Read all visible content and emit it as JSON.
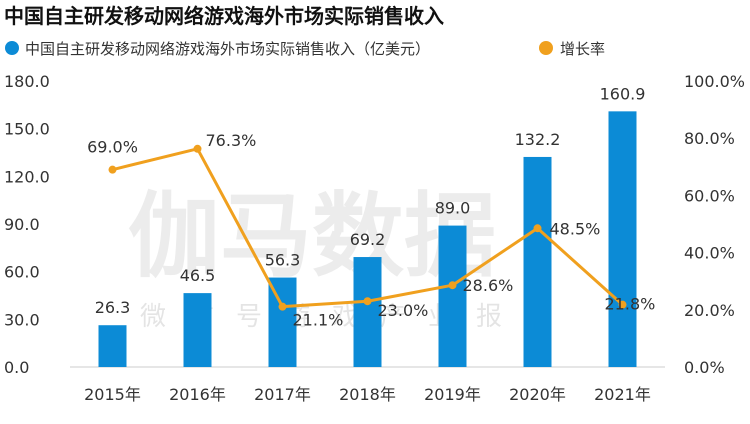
{
  "chart_data": {
    "type": "bar",
    "title": "中国自主研发移动网络游戏海外市场实际销售收入",
    "categories": [
      "2015年",
      "2016年",
      "2017年",
      "2018年",
      "2019年",
      "2020年",
      "2021年"
    ],
    "series": [
      {
        "name": "中国自主研发移动网络游戏海外市场实际销售收入（亿美元）",
        "type": "bar",
        "axis": "left",
        "values": [
          26.3,
          46.5,
          56.3,
          69.2,
          89.0,
          132.2,
          160.9
        ],
        "labels": [
          "26.3",
          "46.5",
          "56.3",
          "69.2",
          "89.0",
          "132.2",
          "160.9"
        ]
      },
      {
        "name": "增长率",
        "type": "line",
        "axis": "right",
        "values": [
          69.0,
          76.3,
          21.1,
          23.0,
          28.6,
          48.5,
          21.8
        ],
        "labels": [
          "69.0%",
          "76.3%",
          "21.1%",
          "23.0%",
          "28.6%",
          "48.5%",
          "21.8%"
        ]
      }
    ],
    "y_left": {
      "range": [
        0,
        180
      ],
      "ticks": [
        "0.0",
        "30.0",
        "60.0",
        "90.0",
        "120.0",
        "150.0",
        "180.0"
      ]
    },
    "y_right": {
      "range": [
        0,
        100
      ],
      "ticks": [
        "0.0%",
        "20.0%",
        "40.0%",
        "60.0%",
        "80.0%",
        "100.0%"
      ]
    },
    "legend_position": "top",
    "watermark": {
      "main": "伽马数据",
      "sub": "微信号游戏产业报告"
    },
    "colors": {
      "bar": "#0c8bd6",
      "line": "#f0a01e",
      "axis": "#cccccc"
    }
  }
}
